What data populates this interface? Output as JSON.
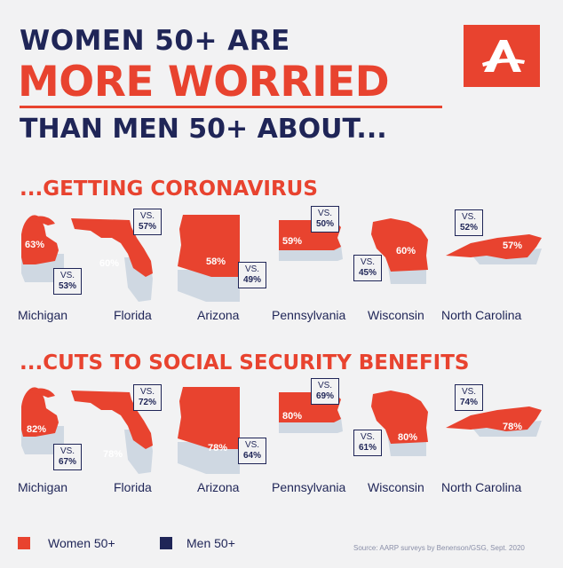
{
  "headline": {
    "line1": "WOMEN 50+ ARE",
    "line2": "MORE WORRIED",
    "line3": "THAN MEN 50+ ABOUT..."
  },
  "logo_icon": "aarp-a-logo",
  "colors": {
    "women": "#e8432f",
    "men": "#1f2557",
    "background": "#f2f2f3",
    "shadow": "#cfd8e2"
  },
  "vs_label": "VS.",
  "sections": [
    {
      "title": "...GETTING CORONAVIRUS",
      "states": [
        {
          "name": "Michigan",
          "women": "63%",
          "men": "53%"
        },
        {
          "name": "Florida",
          "women": "60%",
          "men": "57%"
        },
        {
          "name": "Arizona",
          "women": "58%",
          "men": "49%"
        },
        {
          "name": "Pennsylvania",
          "women": "59%",
          "men": "50%"
        },
        {
          "name": "Wisconsin",
          "women": "60%",
          "men": "45%"
        },
        {
          "name": "North Carolina",
          "women": "57%",
          "men": "52%"
        }
      ]
    },
    {
      "title": "...CUTS TO SOCIAL SECURITY BENEFITS",
      "states": [
        {
          "name": "Michigan",
          "women": "82%",
          "men": "67%"
        },
        {
          "name": "Florida",
          "women": "78%",
          "men": "72%"
        },
        {
          "name": "Arizona",
          "women": "78%",
          "men": "64%"
        },
        {
          "name": "Pennsylvania",
          "women": "80%",
          "men": "69%"
        },
        {
          "name": "Wisconsin",
          "women": "80%",
          "men": "61%"
        },
        {
          "name": "North Carolina",
          "women": "78%",
          "men": "74%"
        }
      ]
    }
  ],
  "legend": {
    "women": "Women 50+",
    "men": "Men 50+"
  },
  "source": "Source: AARP surveys by Benenson/GSG, Sept. 2020"
}
